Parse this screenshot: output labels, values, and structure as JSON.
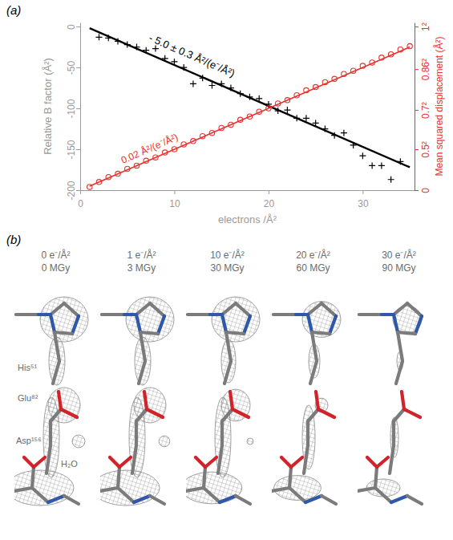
{
  "chart_data": {
    "type": "scatter",
    "panel_label": "(a)",
    "x_label": "electrons /Å²",
    "y_label": "Relative B factor (Å²)",
    "y2_label": "Mean squared displacement (Å²)",
    "annotations": [
      "- 5.0 ± 0.3 Å²/(e⁻/Å²)",
      "0.02 Å²/(e⁻/Å²)"
    ],
    "xlim": [
      0,
      35.5
    ],
    "xticks": [
      0,
      10,
      20,
      30
    ],
    "ylim": [
      -200,
      5
    ],
    "yticks": [
      -200,
      -150,
      -100,
      -50,
      0
    ],
    "y2lim": [
      0,
      1.025
    ],
    "y2ticks": [
      0,
      {
        "value": 0.25,
        "label": "0.5²"
      },
      {
        "value": 0.49,
        "label": "0.7²"
      },
      {
        "value": 0.7396,
        "label": "0.86²"
      },
      {
        "value": 1,
        "label": "1²"
      }
    ],
    "series": [
      {
        "type": "scatter",
        "color": "#000000",
        "marker": "plus",
        "x": [
          2,
          3,
          4,
          5,
          6,
          7,
          8,
          9,
          10,
          11,
          12,
          13,
          14,
          15,
          16,
          17,
          18,
          19,
          20,
          21,
          22,
          23,
          24,
          25,
          26,
          27,
          28,
          29,
          30,
          31,
          32,
          33,
          34
        ],
        "values": [
          -13,
          -14,
          -18,
          -22,
          -25,
          -29,
          -27,
          -39,
          -43,
          -50,
          -70,
          -63,
          -72,
          -70,
          -75,
          -82,
          -86,
          -88,
          -95,
          -103,
          -102,
          -112,
          -112,
          -118,
          -125,
          -133,
          -130,
          -145,
          -158,
          -170,
          -170,
          -187,
          -165
        ]
      },
      {
        "type": "line",
        "color": "#000000",
        "x": [
          1,
          35
        ],
        "values": [
          -2,
          -172
        ]
      },
      {
        "type": "scatter",
        "color": "#e8312e",
        "marker": "circle",
        "axis": "y2",
        "x": [
          1,
          2,
          3,
          4,
          5,
          6,
          7,
          8,
          9,
          10,
          11,
          12,
          13,
          14,
          15,
          16,
          17,
          18,
          19,
          20,
          21,
          22,
          23,
          24,
          25,
          26,
          27,
          28,
          29,
          30,
          31,
          32,
          33,
          34,
          35
        ],
        "values": [
          0.02,
          0.05,
          0.08,
          0.1,
          0.13,
          0.15,
          0.18,
          0.2,
          0.23,
          0.25,
          0.28,
          0.3,
          0.33,
          0.35,
          0.38,
          0.4,
          0.43,
          0.45,
          0.48,
          0.5,
          0.53,
          0.55,
          0.58,
          0.61,
          0.63,
          0.66,
          0.68,
          0.71,
          0.73,
          0.76,
          0.78,
          0.81,
          0.83,
          0.86,
          0.88
        ]
      },
      {
        "type": "line",
        "color": "#e8312e",
        "axis": "y2",
        "x": [
          1,
          35
        ],
        "values": [
          0.025,
          0.875
        ]
      }
    ]
  },
  "panel_b": {
    "label": "(b)",
    "columns": [
      {
        "dose": "0 e⁻/Å²",
        "mgy": "0 MGy"
      },
      {
        "dose": "1 e⁻/Å²",
        "mgy": "3 MGy"
      },
      {
        "dose": "10 e⁻/Å²",
        "mgy": "30 MGy"
      },
      {
        "dose": "20 e⁻/Å²",
        "mgy": "60 MGy"
      },
      {
        "dose": "30 e⁻/Å²",
        "mgy": "90 MGy"
      }
    ],
    "labels": [
      "His⁵¹",
      "Glu⁸²",
      "Asp¹⁵⁶",
      "H₂O"
    ]
  }
}
